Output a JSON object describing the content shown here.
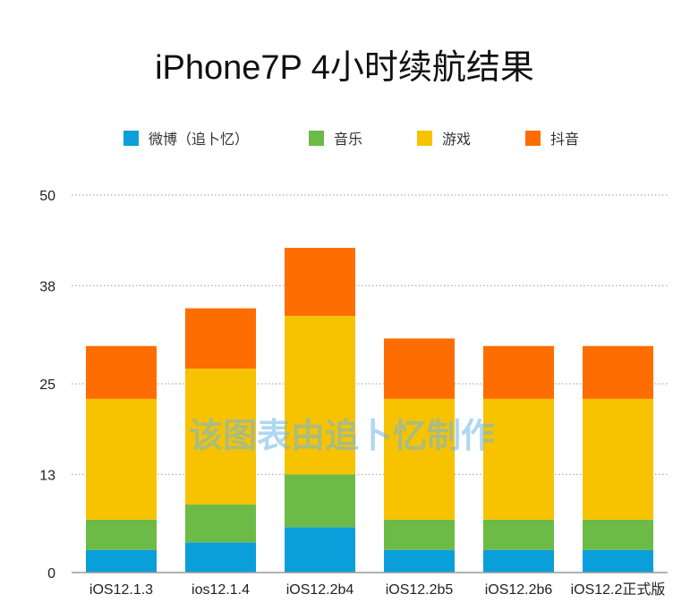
{
  "chart_data": {
    "type": "bar",
    "stacked": true,
    "title": "iPhone7P 4小时续航结果",
    "watermark": "该图表由追卜忆制作",
    "categories": [
      "iOS12.1.3",
      "ios12.1.4",
      "iOS12.2b4",
      "iOS12.2b5",
      "iOS12.2b6",
      "iOS12.2正式版"
    ],
    "series": [
      {
        "name": "微博（追卜忆）",
        "color": "#0a9fda",
        "values": [
          3,
          4,
          6,
          3,
          3,
          3
        ]
      },
      {
        "name": "音乐",
        "color": "#6cbb47",
        "values": [
          4,
          5,
          7,
          4,
          4,
          4
        ]
      },
      {
        "name": "游戏",
        "color": "#f7c300",
        "values": [
          16,
          18,
          21,
          16,
          16,
          16
        ]
      },
      {
        "name": "抖音",
        "color": "#fe6d02",
        "values": [
          7,
          8,
          9,
          8,
          7,
          7
        ]
      }
    ],
    "yticks": [
      "0",
      "13",
      "25",
      "38",
      "50"
    ],
    "ylim": [
      0,
      50
    ],
    "legend_position": "top",
    "grid": true
  }
}
